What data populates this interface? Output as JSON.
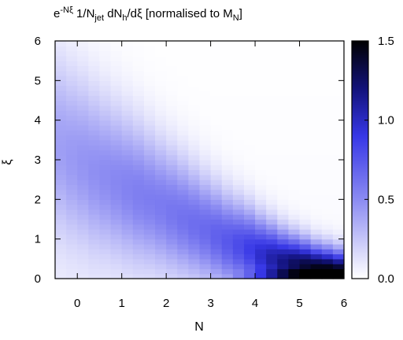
{
  "chart_data": {
    "type": "heatmap",
    "title_main": "e",
    "title_exp": "-Nξ",
    "title_a": " 1/N",
    "title_sub_jet": "jet",
    "title_b": " dN",
    "title_sub_h": "h",
    "title_c": "/dξ  [normalised to M",
    "title_sub_N": "N",
    "title_d": "]",
    "xlabel": "N",
    "ylabel": "ξ",
    "xlim": [
      -0.5,
      6.0
    ],
    "ylim": [
      0,
      6
    ],
    "xticks": [
      0,
      1,
      2,
      3,
      4,
      5,
      6
    ],
    "yticks": [
      0,
      1,
      2,
      3,
      4,
      5,
      6
    ],
    "colorbar": {
      "min": 0.0,
      "max": 1.5,
      "ticks": [
        0.0,
        0.5,
        1.0,
        1.5
      ]
    },
    "colors": {
      "low": "#ffffff",
      "mid": "#3737e6",
      "high": "#000000"
    },
    "grid": false,
    "N_values": [
      -0.5,
      -0.25,
      0.0,
      0.25,
      0.5,
      0.75,
      1.0,
      1.25,
      1.5,
      1.75,
      2.0,
      2.25,
      2.5,
      2.75,
      3.0,
      3.25,
      3.5,
      3.75,
      4.0,
      4.25,
      4.5,
      4.75,
      5.0,
      5.25,
      5.5,
      5.75
    ],
    "profile": {
      "peak_xi": [
        3.3,
        3.1,
        2.95,
        2.75,
        2.6,
        2.45,
        2.3,
        2.15,
        2.0,
        1.85,
        1.7,
        1.55,
        1.4,
        1.25,
        1.1,
        0.95,
        0.85,
        0.75,
        0.6,
        0.5,
        0.4,
        0.35,
        0.28,
        0.2,
        0.16,
        0.12
      ],
      "width_xi": [
        1.55,
        1.5,
        1.45,
        1.4,
        1.35,
        1.3,
        1.25,
        1.2,
        1.15,
        1.1,
        1.05,
        1.0,
        0.95,
        0.9,
        0.85,
        0.8,
        0.75,
        0.7,
        0.65,
        0.6,
        0.55,
        0.5,
        0.47,
        0.44,
        0.42,
        0.4
      ],
      "peak_value": [
        0.4,
        0.42,
        0.44,
        0.46,
        0.48,
        0.5,
        0.52,
        0.54,
        0.55,
        0.56,
        0.58,
        0.6,
        0.62,
        0.64,
        0.68,
        0.72,
        0.78,
        0.85,
        0.95,
        1.05,
        1.15,
        1.25,
        1.35,
        1.45,
        1.5,
        1.5
      ],
      "floor_value": [
        0.05,
        0.05,
        0.05,
        0.05,
        0.04,
        0.04,
        0.04,
        0.04,
        0.03,
        0.03,
        0.03,
        0.03,
        0.03,
        0.03,
        0.03,
        0.03,
        0.03,
        0.03,
        0.03,
        0.03,
        0.03,
        0.03,
        0.03,
        0.03,
        0.03,
        0.03
      ],
      "edge_band": {
        "xi_max": 0.25,
        "N_from": 3.0,
        "values": [
          0.3,
          0.4,
          0.55,
          0.7,
          0.9,
          1.1,
          1.3,
          1.45,
          1.5,
          1.5,
          1.5,
          1.5
        ]
      }
    }
  }
}
